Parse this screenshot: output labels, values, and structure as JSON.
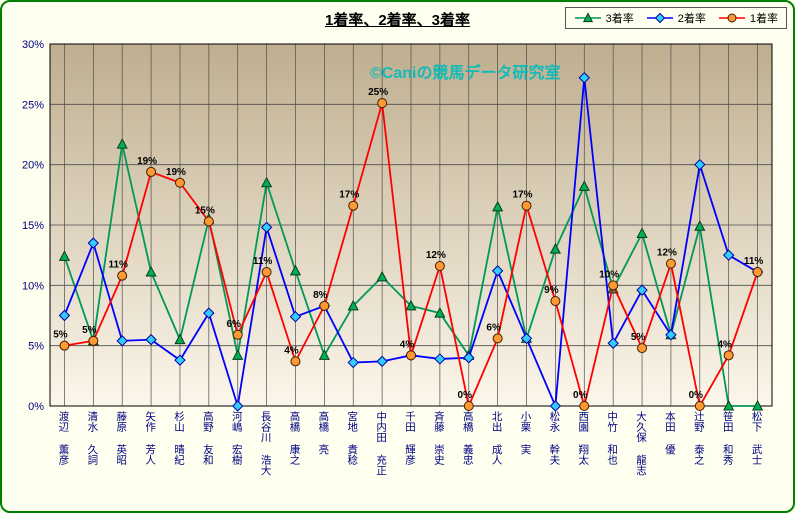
{
  "title": "1着率、2着率、3着率",
  "watermark": "©Caniの競馬データ研究室",
  "colors": {
    "frame_border": "#008000",
    "page_background": "#FFFFF0",
    "plot_top": "#BFAE8F",
    "plot_bottom": "#FCF7EB",
    "gridline": "#4D4D4D",
    "axis_text": "#000080",
    "watermark": "#00BBBB",
    "series_3rd_line": "#009957",
    "series_2nd_line": "#0000FF",
    "series_1st_line": "#FF0000"
  },
  "chart_data": {
    "type": "line",
    "title": "1着率、2着率、3着率",
    "grid": true,
    "legend_position": "top-right",
    "ylim": [
      0,
      30
    ],
    "yticks": [
      {
        "value": 0,
        "label": "0%"
      },
      {
        "value": 5,
        "label": "5%"
      },
      {
        "value": 10,
        "label": "10%"
      },
      {
        "value": 15,
        "label": "15%"
      },
      {
        "value": 20,
        "label": "20%"
      },
      {
        "value": 25,
        "label": "25%"
      },
      {
        "value": 30,
        "label": "30%"
      }
    ],
    "categories": [
      "渡辺 薫彦",
      "清水 久詞",
      "藤原 英昭",
      "矢作 芳人",
      "杉山 晴紀",
      "高野 友和",
      "河嶋 宏樹",
      "長谷川 浩大",
      "高橋 康之",
      "高橋 亮",
      "宮地 貴稔",
      "中内田 充正",
      "千田 輝彦",
      "斉藤 崇史",
      "高橋 義忠",
      "北出 成人",
      "小栗 実",
      "松永 幹夫",
      "西園 翔太",
      "中竹 和也",
      "大久保 龍志",
      "本田 優",
      "辻野 泰之",
      "笹田 和秀",
      "松下 武士"
    ],
    "series": [
      {
        "name": "3着率",
        "marker": "triangle",
        "line_color": "#009957",
        "fill_color": "#00B050",
        "edge_color": "#0B3B20",
        "values": [
          12.4,
          5.4,
          21.7,
          11.1,
          5.5,
          15.5,
          4.2,
          18.5,
          11.2,
          4.2,
          8.3,
          10.7,
          8.3,
          7.7,
          4.2,
          16.5,
          5.6,
          13.0,
          18.2,
          9.7,
          14.3,
          5.9,
          14.9,
          0,
          0
        ]
      },
      {
        "name": "2着率",
        "marker": "diamond",
        "line_color": "#0000FF",
        "fill_color": "#33CCFF",
        "edge_color": "#0000A0",
        "values": [
          7.5,
          13.5,
          5.4,
          5.5,
          3.8,
          7.7,
          0,
          14.8,
          7.4,
          8.3,
          3.6,
          3.7,
          4.2,
          3.9,
          4.0,
          11.2,
          5.6,
          0,
          27.2,
          5.2,
          9.6,
          5.9,
          20.0,
          12.5,
          11.1
        ]
      },
      {
        "name": "1着率",
        "marker": "circle",
        "line_color": "#FF0000",
        "fill_color": "#FF9933",
        "edge_color": "#402000",
        "values": [
          5.0,
          5.4,
          10.8,
          19.4,
          18.5,
          15.3,
          5.9,
          11.1,
          3.7,
          8.3,
          16.6,
          25.1,
          4.2,
          11.6,
          0,
          5.6,
          16.6,
          8.7,
          0,
          10.0,
          4.8,
          11.8,
          0,
          4.2,
          11.1
        ],
        "data_labels": [
          "5%",
          "5%",
          "11%",
          "19%",
          "19%",
          "15%",
          "6%",
          "11%",
          "4%",
          "8%",
          "17%",
          "25%",
          "4%",
          "12%",
          "0%",
          "6%",
          "17%",
          "9%",
          "0%",
          "10%",
          "5%",
          "12%",
          "0%",
          "4%",
          "11%"
        ]
      }
    ]
  }
}
